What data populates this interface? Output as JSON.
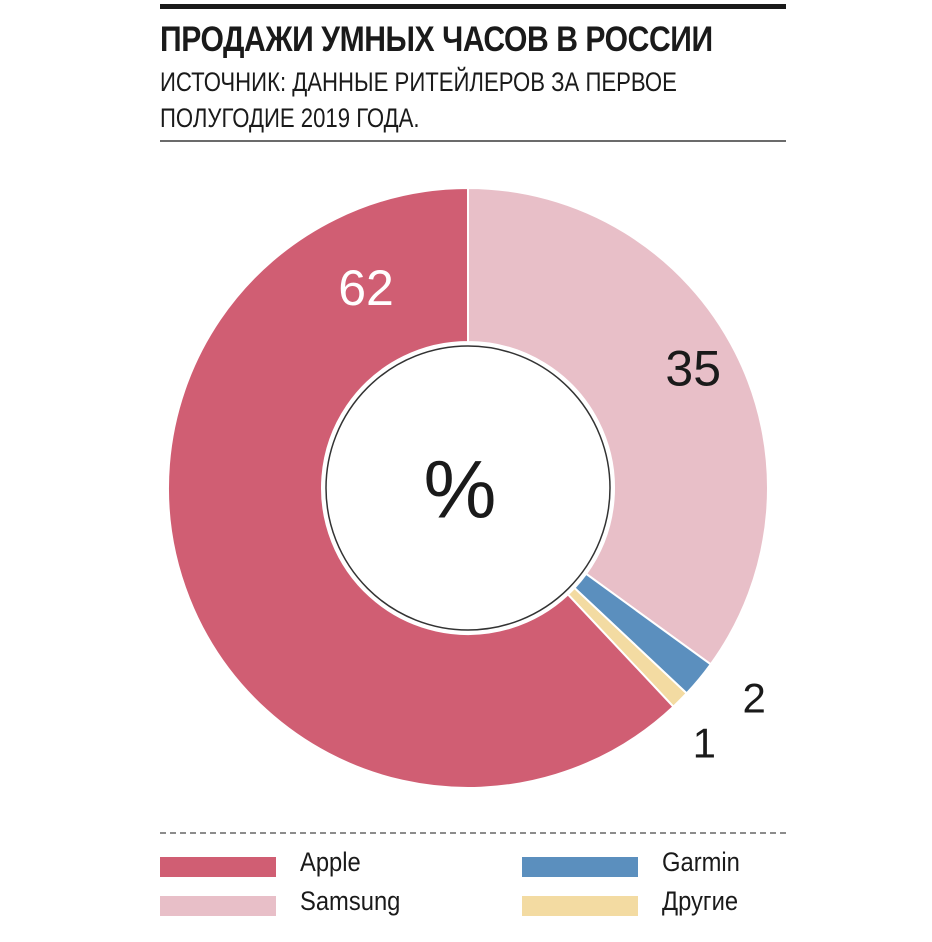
{
  "header": {
    "title": "ПРОДАЖИ УМНЫХ ЧАСОВ В РОССИИ",
    "subtitle_line1": "ИСТОЧНИК: ДАННЫЕ РИТЕЙЛЕРОВ ЗА ПЕРВОЕ",
    "subtitle_line2": "ПОЛУГОДИЕ 2019 ГОДА."
  },
  "chart_data": {
    "type": "pie",
    "title": "ПРОДАЖИ УМНЫХ ЧАСОВ В РОССИИ",
    "subtitle": "ИСТОЧНИК: ДАННЫЕ РИТЕЙЛЕРОВ ЗА ПЕРВОЕ ПОЛУГОДИЕ 2019 ГОДА.",
    "center_label": "%",
    "unit": "%",
    "donut": true,
    "start": "12 o'clock",
    "direction": "clockwise, starting with Samsung",
    "slices": [
      {
        "name": "Samsung",
        "value": 35,
        "label": "35",
        "color": "#e8bfc8",
        "label_color": "#1a1a1a"
      },
      {
        "name": "Garmin",
        "value": 2,
        "label": "2",
        "color": "#5b8fbe",
        "label_color": "#1a1a1a"
      },
      {
        "name": "Другие",
        "value": 1,
        "label": "1",
        "color": "#f3dba2",
        "label_color": "#1a1a1a"
      },
      {
        "name": "Apple",
        "value": 62,
        "label": "62",
        "color": "#d05e73",
        "label_color": "#ffffff"
      }
    ],
    "legend": [
      "Apple",
      "Samsung",
      "Garmin",
      "Другие"
    ],
    "legend_placement": "bottom"
  }
}
